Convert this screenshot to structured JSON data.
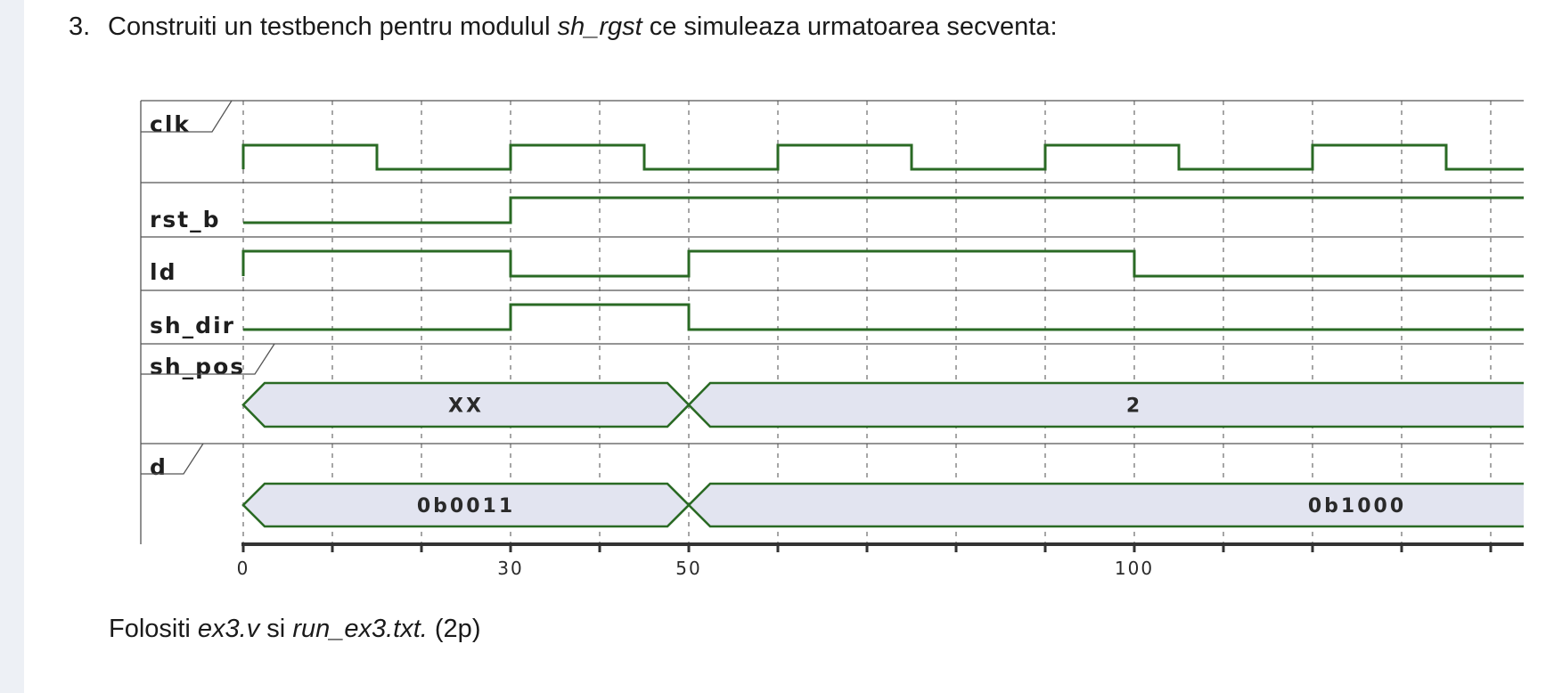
{
  "task": {
    "number": "3.",
    "text_before": "Construiti un testbench pentru modulul ",
    "module": "sh_rgst",
    "text_after": " ce simuleaza urmatoarea secventa:"
  },
  "footer": {
    "prefix": "Folositi ",
    "file1": "ex3.v",
    "middle": " si ",
    "file2": "run_ex3.txt.",
    "points": " (2p)"
  },
  "colors": {
    "wave": "#2a6a24",
    "bus_fill": "#e2e4f0",
    "grid": "#777777",
    "lines": "#555555"
  },
  "waveform": {
    "time_range": [
      0,
      144
    ],
    "tick_step": 10,
    "tick_labels": [
      {
        "t": 0,
        "label": "0"
      },
      {
        "t": 30,
        "label": "30"
      },
      {
        "t": 50,
        "label": "50"
      },
      {
        "t": 100,
        "label": "100"
      }
    ],
    "signals": [
      {
        "name": "clk",
        "kind": "bit",
        "tab": true,
        "changes": [
          [
            0,
            1
          ],
          [
            15,
            0
          ],
          [
            30,
            1
          ],
          [
            45,
            0
          ],
          [
            60,
            1
          ],
          [
            75,
            0
          ],
          [
            90,
            1
          ],
          [
            105,
            0
          ],
          [
            120,
            1
          ],
          [
            135,
            0
          ]
        ]
      },
      {
        "name": "rst_b",
        "kind": "bit",
        "tab": false,
        "changes": [
          [
            0,
            0
          ],
          [
            30,
            1
          ]
        ]
      },
      {
        "name": "ld",
        "kind": "bit",
        "tab": false,
        "changes": [
          [
            0,
            1
          ],
          [
            30,
            0
          ],
          [
            50,
            1
          ],
          [
            100,
            0
          ]
        ]
      },
      {
        "name": "sh_dir",
        "kind": "bit",
        "tab": false,
        "changes": [
          [
            0,
            0
          ],
          [
            30,
            1
          ],
          [
            50,
            0
          ]
        ]
      },
      {
        "name": "sh_pos",
        "kind": "bus",
        "tab": true,
        "segments": [
          {
            "start": 0,
            "end": 50,
            "value": "XX",
            "label_t": 25
          },
          {
            "start": 50,
            "end": 144,
            "value": "2",
            "label_t": 100
          }
        ]
      },
      {
        "name": "d",
        "kind": "bus",
        "tab": true,
        "segments": [
          {
            "start": 0,
            "end": 50,
            "value": "0b0011",
            "label_t": 25
          },
          {
            "start": 50,
            "end": 144,
            "value": "0b1000",
            "label_t": 125
          }
        ]
      }
    ]
  }
}
